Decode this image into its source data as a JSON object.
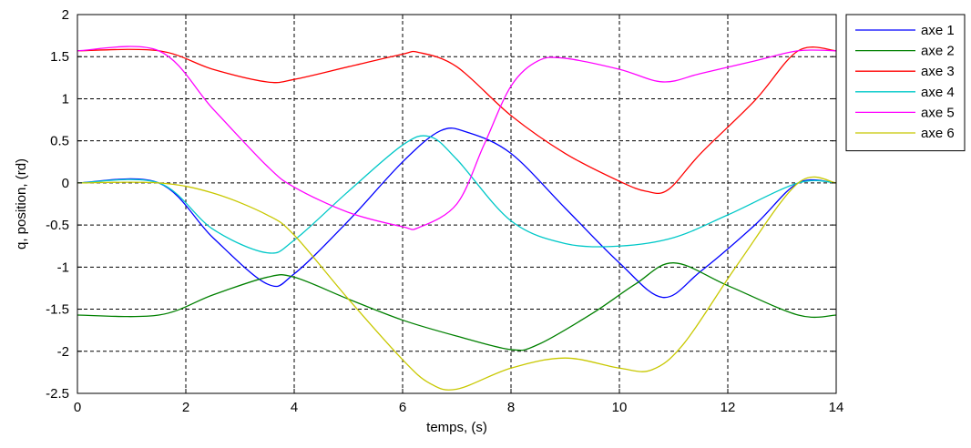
{
  "chart_data": {
    "type": "line",
    "title": "",
    "xlabel": "temps, (s)",
    "ylabel": "q, position, (rd)",
    "xlim": [
      0,
      14
    ],
    "ylim": [
      -2.5,
      2
    ],
    "xticks": [
      0,
      2,
      4,
      6,
      8,
      10,
      12,
      14
    ],
    "xtick_labels": [
      "0",
      "2",
      "4",
      "6",
      "8",
      "10",
      "12",
      "14"
    ],
    "yticks": [
      2,
      1.5,
      1,
      0.5,
      0,
      -0.5,
      -1,
      -1.5,
      -2,
      -2.5
    ],
    "ytick_labels": [
      "2",
      "1.5",
      "1",
      "0.5",
      "0",
      "-0.5",
      "-1",
      "-1.5",
      "-2",
      "-2.5"
    ],
    "grid": true,
    "grid_style": "dashed",
    "legend_position": "outside-right",
    "series": [
      {
        "name": "axe 1",
        "color": "#0000ff",
        "points": [
          [
            0,
            0
          ],
          [
            1.5,
            0
          ],
          [
            2.5,
            -0.65
          ],
          [
            3.5,
            -1.2
          ],
          [
            4.0,
            -1.08
          ],
          [
            5.0,
            -0.45
          ],
          [
            6.0,
            0.25
          ],
          [
            6.7,
            0.62
          ],
          [
            7.2,
            0.6
          ],
          [
            8.0,
            0.35
          ],
          [
            9.0,
            -0.3
          ],
          [
            10.0,
            -0.95
          ],
          [
            10.8,
            -1.36
          ],
          [
            11.5,
            -1.05
          ],
          [
            12.5,
            -0.5
          ],
          [
            13.3,
            0
          ],
          [
            14,
            0
          ]
        ]
      },
      {
        "name": "axe 2",
        "color": "#008000",
        "points": [
          [
            0,
            -1.57
          ],
          [
            1.5,
            -1.57
          ],
          [
            2.5,
            -1.33
          ],
          [
            3.5,
            -1.12
          ],
          [
            4.0,
            -1.12
          ],
          [
            5.0,
            -1.38
          ],
          [
            6.0,
            -1.63
          ],
          [
            7.0,
            -1.82
          ],
          [
            8.0,
            -1.98
          ],
          [
            8.5,
            -1.92
          ],
          [
            9.5,
            -1.55
          ],
          [
            10.3,
            -1.2
          ],
          [
            11.0,
            -0.95
          ],
          [
            12.0,
            -1.22
          ],
          [
            13.3,
            -1.57
          ],
          [
            14,
            -1.57
          ]
        ]
      },
      {
        "name": "axe 3",
        "color": "#ff0000",
        "points": [
          [
            0,
            1.57
          ],
          [
            1.5,
            1.57
          ],
          [
            2.5,
            1.35
          ],
          [
            3.5,
            1.2
          ],
          [
            4.0,
            1.23
          ],
          [
            5.0,
            1.38
          ],
          [
            6.0,
            1.53
          ],
          [
            6.3,
            1.55
          ],
          [
            7.0,
            1.38
          ],
          [
            8.0,
            0.8
          ],
          [
            9.0,
            0.35
          ],
          [
            10.0,
            0.02
          ],
          [
            10.5,
            -0.1
          ],
          [
            10.9,
            -0.08
          ],
          [
            11.5,
            0.35
          ],
          [
            12.5,
            0.98
          ],
          [
            13.3,
            1.57
          ],
          [
            14,
            1.57
          ]
        ]
      },
      {
        "name": "axe 4",
        "color": "#00c8c8",
        "points": [
          [
            0,
            0
          ],
          [
            1.5,
            0
          ],
          [
            2.5,
            -0.55
          ],
          [
            3.5,
            -0.83
          ],
          [
            4.0,
            -0.68
          ],
          [
            5.0,
            -0.1
          ],
          [
            6.0,
            0.45
          ],
          [
            6.5,
            0.55
          ],
          [
            7.0,
            0.28
          ],
          [
            8.0,
            -0.45
          ],
          [
            9.0,
            -0.72
          ],
          [
            10.0,
            -0.75
          ],
          [
            11.0,
            -0.65
          ],
          [
            12.0,
            -0.38
          ],
          [
            13.3,
            0
          ],
          [
            14,
            0
          ]
        ]
      },
      {
        "name": "axe 5",
        "color": "#ff00ff",
        "points": [
          [
            0,
            1.57
          ],
          [
            1.5,
            1.57
          ],
          [
            2.5,
            0.88
          ],
          [
            3.5,
            0.2
          ],
          [
            4.0,
            -0.05
          ],
          [
            5.0,
            -0.35
          ],
          [
            6.0,
            -0.52
          ],
          [
            6.3,
            -0.53
          ],
          [
            7.0,
            -0.25
          ],
          [
            7.5,
            0.45
          ],
          [
            8.0,
            1.15
          ],
          [
            8.5,
            1.45
          ],
          [
            9.0,
            1.48
          ],
          [
            10.0,
            1.35
          ],
          [
            10.8,
            1.2
          ],
          [
            11.5,
            1.3
          ],
          [
            12.5,
            1.45
          ],
          [
            13.3,
            1.57
          ],
          [
            14,
            1.57
          ]
        ]
      },
      {
        "name": "axe 6",
        "color": "#c8c800",
        "points": [
          [
            0,
            0
          ],
          [
            1.5,
            0
          ],
          [
            2.5,
            -0.12
          ],
          [
            3.5,
            -0.38
          ],
          [
            4.0,
            -0.62
          ],
          [
            5.0,
            -1.38
          ],
          [
            6.0,
            -2.1
          ],
          [
            6.5,
            -2.38
          ],
          [
            7.0,
            -2.45
          ],
          [
            8.0,
            -2.2
          ],
          [
            9.0,
            -2.08
          ],
          [
            10.0,
            -2.2
          ],
          [
            10.6,
            -2.22
          ],
          [
            11.2,
            -1.9
          ],
          [
            12.2,
            -0.95
          ],
          [
            13.3,
            0
          ],
          [
            14,
            0
          ]
        ]
      }
    ]
  }
}
